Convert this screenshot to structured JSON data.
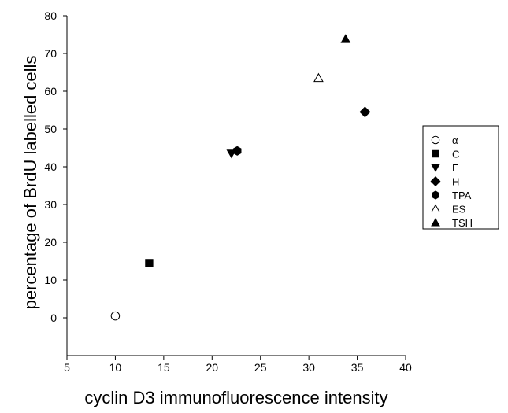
{
  "chart_data": {
    "type": "scatter",
    "xlabel": "cyclin D3 immunofluorescence intensity",
    "ylabel": "percentage of BrdU labelled cells",
    "xlim": [
      5,
      40
    ],
    "ylim": [
      -10,
      80
    ],
    "xticks": [
      5,
      10,
      15,
      20,
      25,
      30,
      35,
      40
    ],
    "yticks": [
      0,
      10,
      20,
      30,
      40,
      50,
      60,
      70,
      80
    ],
    "grid": false,
    "legend_position": "right",
    "series": [
      {
        "name": "α",
        "marker": "circle-open",
        "x": [
          10.0
        ],
        "y": [
          0.5
        ]
      },
      {
        "name": "C",
        "marker": "square",
        "x": [
          13.5
        ],
        "y": [
          14.5
        ]
      },
      {
        "name": "E",
        "marker": "triangle-down",
        "x": [
          22.0
        ],
        "y": [
          43.5
        ]
      },
      {
        "name": "H",
        "marker": "diamond",
        "x": [
          35.8
        ],
        "y": [
          54.5
        ]
      },
      {
        "name": "TPA",
        "marker": "hexagon",
        "x": [
          22.6
        ],
        "y": [
          44.2
        ]
      },
      {
        "name": "ES",
        "marker": "triangle-up-open",
        "x": [
          31.0
        ],
        "y": [
          63.5
        ]
      },
      {
        "name": "TSH",
        "marker": "triangle-up",
        "x": [
          33.8
        ],
        "y": [
          73.8
        ]
      }
    ]
  }
}
